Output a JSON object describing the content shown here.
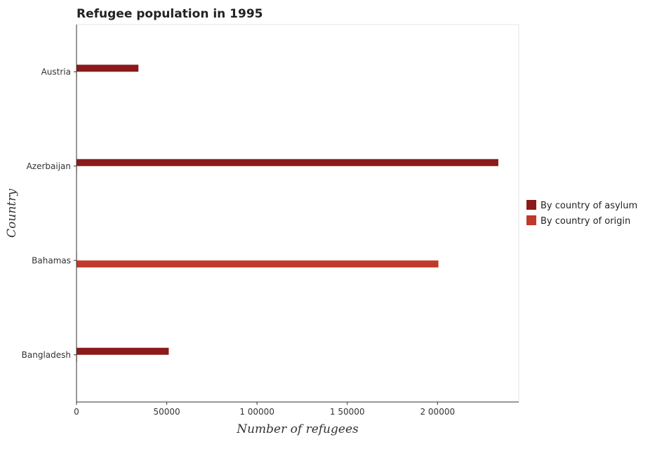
{
  "chart_data": {
    "type": "bar",
    "orientation": "horizontal",
    "title": "Refugee population in 1995",
    "xlabel": "Number of refugees",
    "ylabel": "Country",
    "categories": [
      "Austria",
      "Azerbaijan",
      "Bahamas",
      "Bangladesh"
    ],
    "series": [
      {
        "name": "By country of asylum",
        "color": "#8b1a1a",
        "values": [
          34300,
          233700,
          50,
          51100
        ]
      },
      {
        "name": "By country of origin",
        "color": "#c0392b",
        "values": [
          20,
          150,
          200500,
          300
        ]
      }
    ],
    "xlim": [
      0,
      245000
    ],
    "xticks": [
      0,
      50000,
      100000,
      150000,
      200000
    ],
    "xtick_labels": [
      "0",
      "50000",
      "1 00000",
      "1 50000",
      "2 00000"
    ],
    "grid": false,
    "legend_position": "right"
  }
}
